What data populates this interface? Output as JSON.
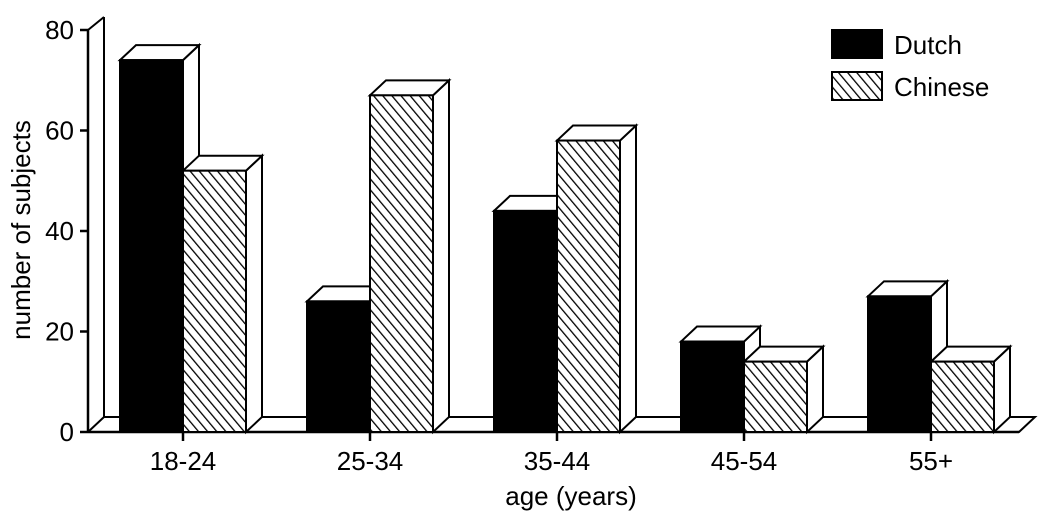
{
  "chart_data": {
    "type": "bar",
    "categories": [
      "18-24",
      "25-34",
      "35-44",
      "45-54",
      "55+"
    ],
    "series": [
      {
        "name": "Dutch",
        "values": [
          74,
          26,
          44,
          18,
          27
        ],
        "fill": "solid",
        "color": "#000000"
      },
      {
        "name": "Chinese",
        "values": [
          52,
          67,
          58,
          14,
          14
        ],
        "fill": "hatched",
        "color": "#000000"
      }
    ],
    "xlabel": "age (years)",
    "ylabel": "number of subjects",
    "ylim": [
      0,
      80
    ],
    "yticks": [
      0,
      20,
      40,
      60,
      80
    ],
    "grid": false,
    "legend_position": "top-right",
    "style": "3d"
  }
}
